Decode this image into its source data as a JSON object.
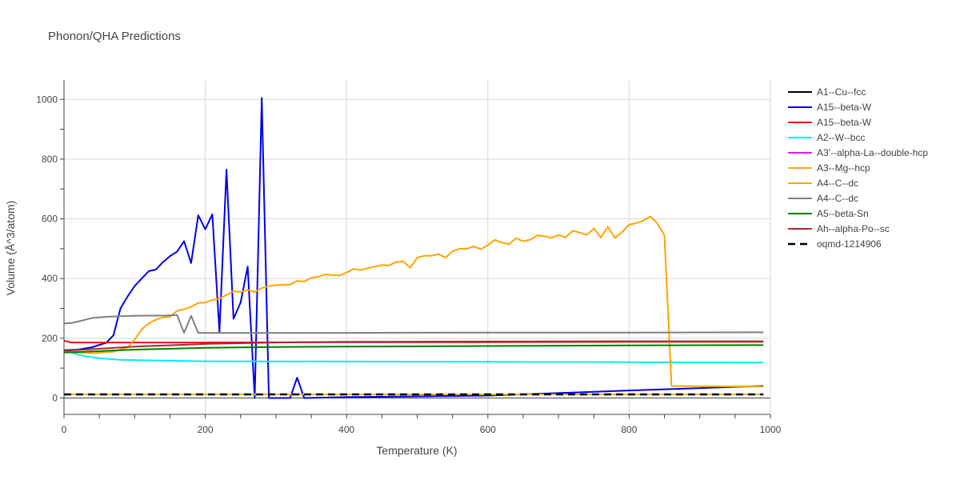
{
  "chart_data": {
    "type": "line",
    "title": "Phonon/QHA Predictions",
    "xlabel": "Temperature (K)",
    "ylabel": "Volume (Å^3/atom)",
    "xlim": [
      0,
      1000
    ],
    "ylim": [
      -55,
      1065
    ],
    "xticks": [
      0,
      200,
      400,
      600,
      800,
      1000
    ],
    "yticks": [
      0,
      200,
      400,
      600,
      800,
      1000
    ],
    "grid": true,
    "legend_position": "right",
    "series": [
      {
        "name": "A1--Cu--fcc",
        "color": "#000000",
        "dash": "solid",
        "x": [
          0,
          200,
          400,
          600,
          800,
          990
        ],
        "y": [
          12,
          12,
          12,
          12,
          12,
          12
        ]
      },
      {
        "name": "A15--beta-W",
        "color": "#0000ee",
        "dash": "solid",
        "x": [
          0,
          20,
          40,
          60,
          70,
          80,
          90,
          100,
          110,
          120,
          130,
          140,
          150,
          160,
          170,
          180,
          190,
          200,
          210,
          220,
          230,
          240,
          250,
          260,
          270,
          280,
          290,
          300,
          320,
          330,
          340,
          400,
          600,
          800,
          990
        ],
        "y": [
          160,
          162,
          170,
          185,
          210,
          300,
          340,
          375,
          400,
          425,
          430,
          455,
          475,
          490,
          525,
          452,
          612,
          565,
          615,
          222,
          765,
          265,
          320,
          440,
          0,
          1005,
          0,
          0,
          0,
          68,
          0,
          3,
          8,
          25,
          40
        ]
      },
      {
        "name": "A15--beta-W",
        "color": "#ee1111",
        "dash": "solid",
        "x": [
          0,
          10,
          20,
          100,
          200,
          400,
          600,
          800,
          990
        ],
        "y": [
          192,
          186,
          186,
          186,
          186,
          187,
          187,
          188,
          188
        ]
      },
      {
        "name": "A2--W--bcc",
        "color": "#00eeee",
        "dash": "solid",
        "x": [
          0,
          10,
          20,
          30,
          50,
          80,
          100,
          200,
          400,
          600,
          800,
          990
        ],
        "y": [
          155,
          152,
          145,
          140,
          133,
          128,
          127,
          123,
          122,
          121,
          120,
          119
        ]
      },
      {
        "name": "A3'--alpha-La--double-hcp",
        "color": "#ee11ee",
        "dash": "solid",
        "x": [],
        "y": []
      },
      {
        "name": "A3--Mg--hcp",
        "color": "#ffaa11",
        "dash": "solid",
        "x": [
          0,
          200,
          400,
          600,
          800,
          990
        ],
        "y": [
          12,
          12,
          12,
          12,
          12,
          12
        ]
      },
      {
        "name": "A4--C--dc",
        "color": "#ffa500",
        "dash": "solid",
        "x": [
          0,
          40,
          70,
          90,
          100,
          110,
          120,
          130,
          140,
          150,
          160,
          170,
          180,
          190,
          200,
          210,
          220,
          230,
          240,
          250,
          260,
          270,
          280,
          290,
          300,
          320,
          330,
          340,
          350,
          360,
          370,
          380,
          390,
          400,
          410,
          420,
          430,
          440,
          450,
          460,
          470,
          480,
          490,
          500,
          510,
          520,
          530,
          540,
          550,
          560,
          570,
          580,
          590,
          600,
          610,
          620,
          630,
          640,
          650,
          660,
          670,
          680,
          690,
          700,
          710,
          720,
          730,
          740,
          750,
          760,
          770,
          780,
          790,
          800,
          810,
          820,
          830,
          840,
          850,
          860,
          990
        ],
        "y": [
          155,
          150,
          155,
          170,
          195,
          230,
          250,
          262,
          270,
          272,
          292,
          297,
          305,
          318,
          320,
          328,
          333,
          345,
          358,
          355,
          362,
          355,
          368,
          375,
          378,
          380,
          392,
          390,
          402,
          406,
          414,
          412,
          410,
          420,
          432,
          428,
          435,
          440,
          445,
          444,
          455,
          458,
          436,
          470,
          476,
          476,
          482,
          470,
          492,
          500,
          500,
          508,
          498,
          512,
          530,
          520,
          515,
          535,
          525,
          530,
          545,
          542,
          536,
          546,
          538,
          560,
          554,
          546,
          568,
          538,
          573,
          536,
          556,
          580,
          586,
          594,
          608,
          585,
          545,
          40,
          38
        ]
      },
      {
        "name": "A4--C--dc",
        "color": "#808080",
        "dash": "solid",
        "x": [
          0,
          10,
          20,
          30,
          40,
          60,
          80,
          100,
          120,
          140,
          160,
          170,
          180,
          190,
          200,
          400,
          600,
          800,
          990
        ],
        "y": [
          250,
          251,
          256,
          262,
          268,
          272,
          274,
          275,
          276,
          276,
          278,
          218,
          275,
          218,
          218,
          218,
          219,
          219,
          220
        ]
      },
      {
        "name": "A5--beta-Sn",
        "color": "#008000",
        "dash": "solid",
        "x": [
          0,
          50,
          100,
          200,
          300,
          400,
          600,
          800,
          990
        ],
        "y": [
          152,
          157,
          162,
          168,
          171,
          172,
          174,
          176,
          177
        ]
      },
      {
        "name": "Ah--alpha-Po--sc",
        "color": "#a52a2a",
        "dash": "solid",
        "x": [
          0,
          50,
          100,
          200,
          300,
          400,
          600,
          800,
          990
        ],
        "y": [
          158,
          165,
          172,
          181,
          186,
          188,
          189,
          190,
          190
        ]
      },
      {
        "name": "oqmd-1214906",
        "color": "#000000",
        "dash": "dash",
        "x": [
          0,
          200,
          400,
          600,
          800,
          990
        ],
        "y": [
          12,
          12,
          12,
          12,
          12,
          12
        ]
      }
    ]
  }
}
